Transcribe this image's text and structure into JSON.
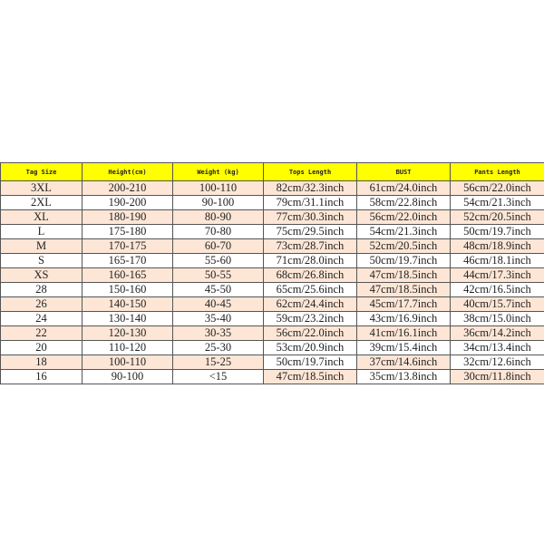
{
  "colors": {
    "header_bg": "#ffff00",
    "row_highlight": "#fde6d6"
  },
  "headers": [
    "Tag Size",
    "Height(cm)",
    "Weight (kg)",
    "Tops Length",
    "BUST",
    "Pants Length"
  ],
  "rows": [
    [
      "3XL",
      "200-210",
      "100-110",
      "82cm/32.3inch",
      "61cm/24.0inch",
      "56cm/22.0inch"
    ],
    [
      "2XL",
      "190-200",
      "90-100",
      "79cm/31.1inch",
      "58cm/22.8inch",
      "54cm/21.3inch"
    ],
    [
      "XL",
      "180-190",
      "80-90",
      "77cm/30.3inch",
      "56cm/22.0inch",
      "52cm/20.5inch"
    ],
    [
      "L",
      "175-180",
      "70-80",
      "75cm/29.5inch",
      "54cm/21.3inch",
      "50cm/19.7inch"
    ],
    [
      "M",
      "170-175",
      "60-70",
      "73cm/28.7inch",
      "52cm/20.5inch",
      "48cm/18.9inch"
    ],
    [
      "S",
      "165-170",
      "55-60",
      "71cm/28.0inch",
      "50cm/19.7inch",
      "46cm/18.1inch"
    ],
    [
      "XS",
      "160-165",
      "50-55",
      "68cm/26.8inch",
      "47cm/18.5inch",
      "44cm/17.3inch"
    ],
    [
      "28",
      "150-160",
      "45-50",
      "65cm/25.6inch",
      "47cm/18.5inch",
      "42cm/16.5inch"
    ],
    [
      "26",
      "140-150",
      "40-45",
      "62cm/24.4inch",
      "45cm/17.7inch",
      "40cm/15.7inch"
    ],
    [
      "24",
      "130-140",
      "35-40",
      "59cm/23.2inch",
      "43cm/16.9inch",
      "38cm/15.0inch"
    ],
    [
      "22",
      "120-130",
      "30-35",
      "56cm/22.0inch",
      "41cm/16.1inch",
      "36cm/14.2inch"
    ],
    [
      "20",
      "110-120",
      "25-30",
      "53cm/20.9inch",
      "39cm/15.4inch",
      "34cm/13.4inch"
    ],
    [
      "18",
      "100-110",
      "15-25",
      "50cm/19.7inch",
      "37cm/14.6inch",
      "32cm/12.6inch"
    ],
    [
      "16",
      "90-100",
      "<15",
      "47cm/18.5inch",
      "35cm/13.8inch",
      "30cm/11.8inch"
    ]
  ]
}
